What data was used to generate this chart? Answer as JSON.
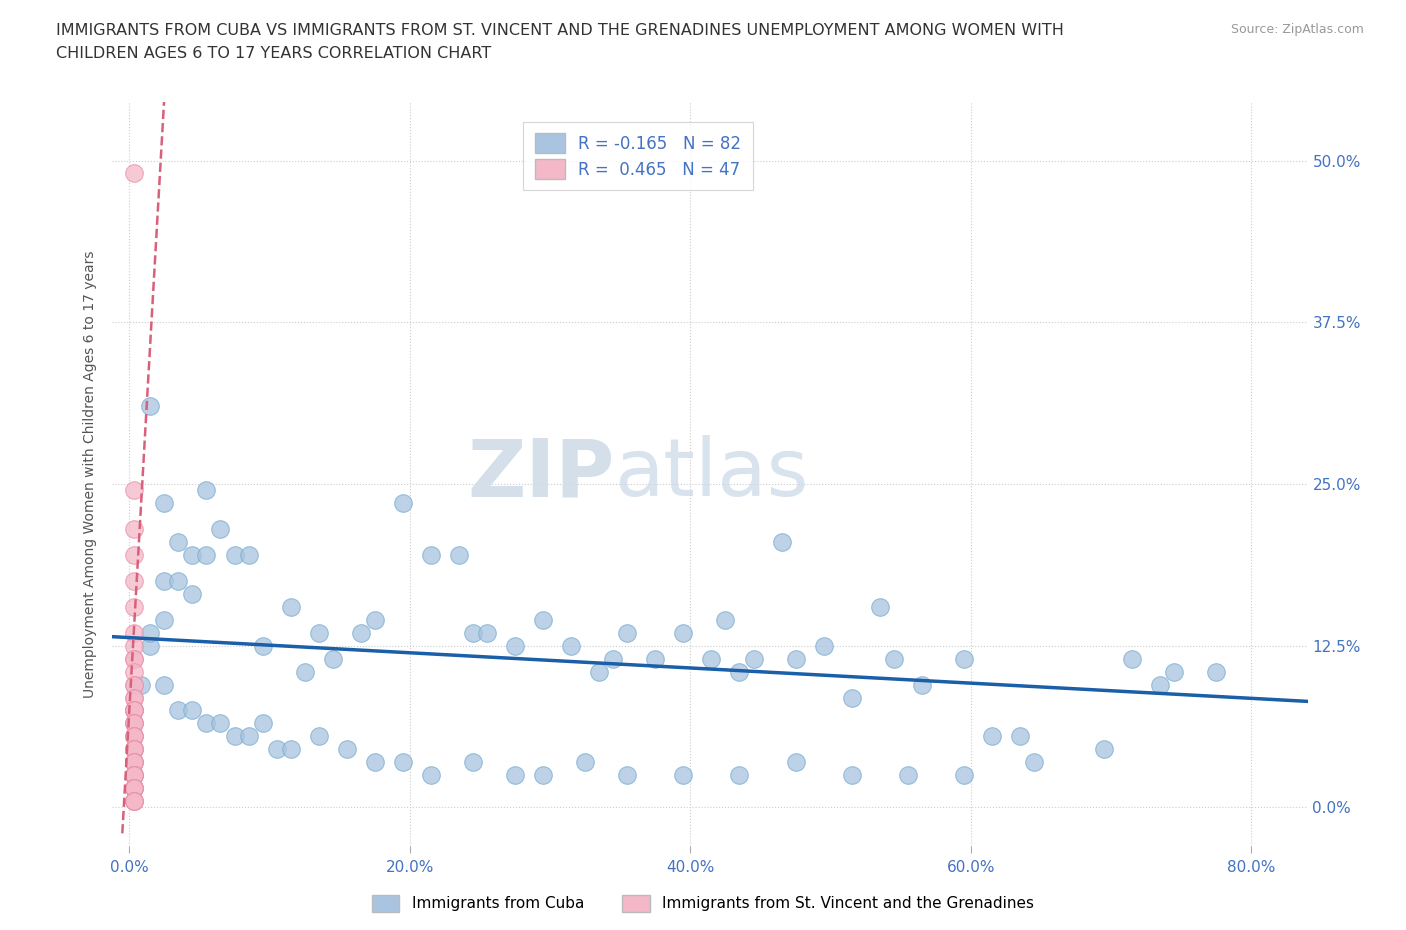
{
  "title_line1": "IMMIGRANTS FROM CUBA VS IMMIGRANTS FROM ST. VINCENT AND THE GRENADINES UNEMPLOYMENT AMONG WOMEN WITH",
  "title_line2": "CHILDREN AGES 6 TO 17 YEARS CORRELATION CHART",
  "source": "Source: ZipAtlas.com",
  "xlabel_ticks": [
    "0.0%",
    "20.0%",
    "40.0%",
    "60.0%",
    "80.0%"
  ],
  "xlabel_vals": [
    0.0,
    0.2,
    0.4,
    0.6,
    0.8
  ],
  "ylabel_ticks": [
    "0.0%",
    "12.5%",
    "25.0%",
    "37.5%",
    "50.0%"
  ],
  "ylabel_vals": [
    0.0,
    0.125,
    0.25,
    0.375,
    0.5
  ],
  "xlim": [
    -0.012,
    0.84
  ],
  "ylim": [
    -0.03,
    0.545
  ],
  "cuba_R": -0.165,
  "cuba_N": 82,
  "svg_R": 0.465,
  "svg_N": 47,
  "cuba_color": "#a8c4e0",
  "cuba_edge_color": "#7aadd0",
  "svg_color": "#f4b8c8",
  "svg_edge_color": "#e890aa",
  "cuba_line_color": "#1a5fa8",
  "svg_line_color": "#d9607a",
  "cuba_line_start_y": 0.132,
  "cuba_line_end_y": 0.082,
  "svg_line_x0": -0.005,
  "svg_line_x1": 0.025,
  "svg_line_y0": -0.02,
  "svg_line_y1": 0.55,
  "cuba_scatter_x": [
    0.015,
    0.025,
    0.015,
    0.035,
    0.045,
    0.025,
    0.015,
    0.008,
    0.055,
    0.035,
    0.075,
    0.045,
    0.055,
    0.025,
    0.065,
    0.085,
    0.115,
    0.095,
    0.135,
    0.145,
    0.125,
    0.165,
    0.175,
    0.195,
    0.215,
    0.235,
    0.245,
    0.255,
    0.275,
    0.295,
    0.315,
    0.335,
    0.345,
    0.355,
    0.375,
    0.395,
    0.415,
    0.425,
    0.435,
    0.445,
    0.465,
    0.475,
    0.495,
    0.515,
    0.535,
    0.545,
    0.565,
    0.595,
    0.615,
    0.635,
    0.715,
    0.745,
    0.025,
    0.035,
    0.045,
    0.055,
    0.065,
    0.075,
    0.085,
    0.095,
    0.105,
    0.115,
    0.135,
    0.155,
    0.175,
    0.195,
    0.215,
    0.245,
    0.275,
    0.295,
    0.325,
    0.355,
    0.395,
    0.435,
    0.475,
    0.515,
    0.555,
    0.595,
    0.645,
    0.695,
    0.735,
    0.775
  ],
  "cuba_scatter_y": [
    0.31,
    0.235,
    0.125,
    0.205,
    0.195,
    0.175,
    0.135,
    0.095,
    0.245,
    0.175,
    0.195,
    0.165,
    0.195,
    0.145,
    0.215,
    0.195,
    0.155,
    0.125,
    0.135,
    0.115,
    0.105,
    0.135,
    0.145,
    0.235,
    0.195,
    0.195,
    0.135,
    0.135,
    0.125,
    0.145,
    0.125,
    0.105,
    0.115,
    0.135,
    0.115,
    0.135,
    0.115,
    0.145,
    0.105,
    0.115,
    0.205,
    0.115,
    0.125,
    0.085,
    0.155,
    0.115,
    0.095,
    0.115,
    0.055,
    0.055,
    0.115,
    0.105,
    0.095,
    0.075,
    0.075,
    0.065,
    0.065,
    0.055,
    0.055,
    0.065,
    0.045,
    0.045,
    0.055,
    0.045,
    0.035,
    0.035,
    0.025,
    0.035,
    0.025,
    0.025,
    0.035,
    0.025,
    0.025,
    0.025,
    0.035,
    0.025,
    0.025,
    0.025,
    0.035,
    0.045,
    0.095,
    0.105
  ],
  "svg_scatter_x": [
    0.003,
    0.003,
    0.003,
    0.003,
    0.003,
    0.003,
    0.003,
    0.003,
    0.003,
    0.003,
    0.003,
    0.003,
    0.003,
    0.003,
    0.003,
    0.003,
    0.003,
    0.003,
    0.003,
    0.003,
    0.003,
    0.003,
    0.003,
    0.003,
    0.003,
    0.003,
    0.003,
    0.003,
    0.003,
    0.003,
    0.003,
    0.003,
    0.003,
    0.003,
    0.003,
    0.003,
    0.003,
    0.003,
    0.003,
    0.003,
    0.003,
    0.003,
    0.003,
    0.003,
    0.003,
    0.003,
    0.003
  ],
  "svg_scatter_y": [
    0.49,
    0.245,
    0.215,
    0.195,
    0.175,
    0.155,
    0.135,
    0.125,
    0.115,
    0.115,
    0.105,
    0.095,
    0.095,
    0.085,
    0.085,
    0.075,
    0.075,
    0.075,
    0.075,
    0.065,
    0.065,
    0.065,
    0.055,
    0.055,
    0.055,
    0.045,
    0.045,
    0.045,
    0.045,
    0.035,
    0.035,
    0.035,
    0.035,
    0.025,
    0.025,
    0.025,
    0.025,
    0.025,
    0.015,
    0.015,
    0.015,
    0.015,
    0.015,
    0.005,
    0.005,
    0.005,
    0.005
  ],
  "watermark_zip": "ZIP",
  "watermark_atlas": "atlas",
  "legend_label_cuba": "Immigrants from Cuba",
  "legend_label_svg": "Immigrants from St. Vincent and the Grenadines"
}
